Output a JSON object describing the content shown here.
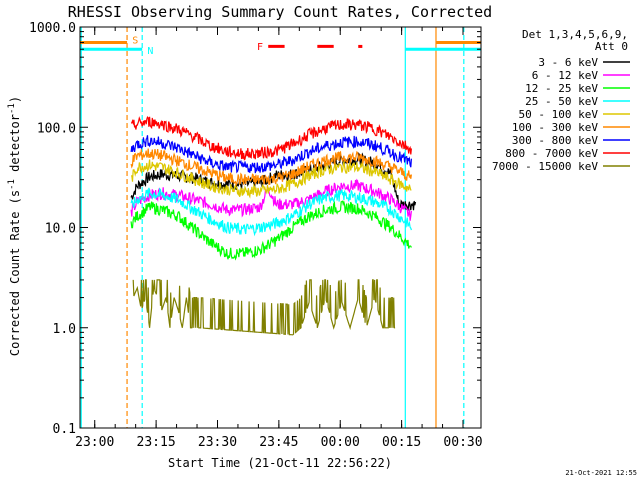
{
  "chart_data": {
    "type": "line",
    "title": "RHESSI Observing Summary Count Rates, Corrected",
    "xlabel": "Start Time (21-Oct-11 22:56:22)",
    "ylabel_main": "Corrected Count Rate (s",
    "ylabel_sup1": "-1",
    "ylabel_mid": " detector",
    "ylabel_sup2": "-1",
    "ylabel_end": ")",
    "x_unit": "minutes after 22:56:22",
    "xlim": [
      0,
      98
    ],
    "ylim": [
      0.1,
      1000
    ],
    "yscale": "log",
    "grid": false,
    "legend_position": "top-right",
    "xticks": [
      {
        "value": 3.6,
        "label": "23:00"
      },
      {
        "value": 18.6,
        "label": "23:15"
      },
      {
        "value": 33.6,
        "label": "23:30"
      },
      {
        "value": 48.6,
        "label": "23:45"
      },
      {
        "value": 63.6,
        "label": "00:00"
      },
      {
        "value": 78.6,
        "label": "00:15"
      },
      {
        "value": 93.6,
        "label": "00:30"
      }
    ],
    "yticks": [
      {
        "value": 0.1,
        "label": "0.1"
      },
      {
        "value": 1,
        "label": "1.0"
      },
      {
        "value": 10,
        "label": "10.0"
      },
      {
        "value": 100,
        "label": "100.0"
      },
      {
        "value": 1000,
        "label": "1000.0"
      }
    ],
    "legend_header": [
      "Det 1,3,4,5,6,9,",
      "Att 0"
    ],
    "series": [
      {
        "name": "3 - 6 keV",
        "color": "#000000",
        "x": [
          12.5,
          14,
          17,
          20,
          24,
          28,
          32,
          36,
          40,
          44,
          48,
          52,
          56,
          60,
          64,
          68,
          72,
          76,
          78,
          80,
          82
        ],
        "y": [
          20,
          26,
          32,
          34,
          33,
          31,
          28,
          27,
          27,
          28,
          33,
          34,
          37,
          42,
          47,
          48,
          44,
          34,
          17,
          17,
          17
        ]
      },
      {
        "name": "6 - 12 keV",
        "color": "#ff00ff",
        "x": [
          12.5,
          14,
          17,
          20,
          24,
          28,
          32,
          36,
          40,
          44,
          46,
          48,
          52,
          56,
          60,
          64,
          68,
          72,
          76,
          80,
          81
        ],
        "y": [
          14,
          18,
          21,
          22,
          21,
          19,
          17,
          15,
          15,
          16,
          25,
          17,
          17,
          19,
          23,
          26,
          26,
          23,
          19,
          14,
          13
        ]
      },
      {
        "name": "12 - 25 keV",
        "color": "#00ff00",
        "x": [
          12.5,
          14,
          17,
          20,
          24,
          28,
          32,
          36,
          40,
          44,
          48,
          52,
          56,
          60,
          64,
          68,
          72,
          76,
          80,
          81
        ],
        "y": [
          11,
          13,
          16,
          15,
          13,
          9.5,
          7,
          5.5,
          5.5,
          6,
          7.5,
          10,
          13,
          15,
          16,
          15.5,
          13,
          10,
          7,
          6.5
        ]
      },
      {
        "name": "25 - 50 keV",
        "color": "#00ffff",
        "x": [
          12.5,
          14,
          17,
          20,
          24,
          28,
          32,
          36,
          40,
          44,
          48,
          52,
          56,
          60,
          64,
          68,
          72,
          76,
          80,
          81
        ],
        "y": [
          16,
          19,
          22,
          21,
          19,
          15,
          12,
          10,
          9.5,
          10,
          11,
          13,
          17,
          20,
          21,
          20,
          18,
          15,
          11,
          10
        ]
      },
      {
        "name": "50 - 100 keV",
        "color": "#ddc700",
        "x": [
          12.5,
          14,
          17,
          20,
          24,
          28,
          32,
          36,
          40,
          44,
          48,
          52,
          56,
          60,
          64,
          68,
          72,
          76,
          80,
          81
        ],
        "y": [
          30,
          40,
          42,
          40,
          35,
          30,
          26,
          24,
          23,
          23,
          24,
          27,
          33,
          38,
          40,
          40,
          36,
          30,
          25,
          23
        ]
      },
      {
        "name": "100 - 300 keV",
        "color": "#ff8800",
        "x": [
          12.5,
          14,
          17,
          20,
          24,
          28,
          32,
          36,
          40,
          44,
          48,
          52,
          56,
          60,
          64,
          68,
          72,
          76,
          80,
          81
        ],
        "y": [
          45,
          52,
          55,
          52,
          46,
          40,
          35,
          31,
          30,
          30,
          31,
          34,
          41,
          47,
          50,
          50,
          46,
          40,
          33,
          31
        ]
      },
      {
        "name": "300 - 800 keV",
        "color": "#0000ff",
        "x": [
          12.5,
          14,
          17,
          20,
          24,
          28,
          32,
          36,
          40,
          44,
          48,
          52,
          56,
          60,
          64,
          68,
          72,
          76,
          80,
          81
        ],
        "y": [
          60,
          68,
          74,
          70,
          62,
          52,
          44,
          40,
          40,
          40,
          42,
          47,
          57,
          65,
          71,
          72,
          66,
          56,
          46,
          43
        ]
      },
      {
        "name": "800 - 7000 keV",
        "color": "#ff0000",
        "x": [
          12.5,
          14,
          17,
          20,
          24,
          28,
          32,
          36,
          40,
          44,
          48,
          52,
          56,
          60,
          64,
          68,
          72,
          76,
          80,
          81
        ],
        "y": [
          100,
          108,
          114,
          108,
          95,
          80,
          65,
          57,
          54,
          55,
          58,
          68,
          84,
          98,
          106,
          106,
          96,
          80,
          64,
          60
        ]
      },
      {
        "name": "7000 - 15000 keV",
        "color": "#808000",
        "x": [
          13,
          14,
          15,
          16,
          17,
          18,
          19,
          20,
          21,
          22,
          23,
          24,
          25,
          26,
          27,
          28,
          29,
          52,
          54,
          56,
          58,
          60,
          62,
          64,
          66,
          68,
          70,
          72,
          74,
          75,
          76,
          77
        ],
        "y": [
          2,
          2.5,
          1.5,
          2,
          1,
          2.5,
          2,
          1.5,
          2,
          1,
          2,
          1.5,
          1,
          2,
          1,
          1,
          1,
          0.85,
          1,
          1.8,
          1,
          2,
          1,
          1.8,
          1,
          2,
          1,
          2,
          1,
          1,
          1,
          1
        ]
      }
    ],
    "vertical_markers": [
      {
        "x": 0.3,
        "color": "#00ffff",
        "style": "solid"
      },
      {
        "x": 11.5,
        "color": "#ff8800",
        "style": "dashed"
      },
      {
        "x": 15.2,
        "color": "#00ffff",
        "style": "dashed"
      },
      {
        "x": 79.5,
        "color": "#00ffff",
        "style": "solid"
      },
      {
        "x": 87,
        "color": "#ff8800",
        "style": "solid"
      },
      {
        "x": 93.8,
        "color": "#00ffff",
        "style": "dashed"
      }
    ],
    "flag_bars": [
      {
        "x0": 0,
        "x1": 11.5,
        "level": 700,
        "color": "#ff8800"
      },
      {
        "x0": 0,
        "x1": 15.2,
        "level": 600,
        "color": "#00ffff"
      },
      {
        "x0": 79.5,
        "x1": 98,
        "level": 600,
        "color": "#00ffff"
      },
      {
        "x0": 87,
        "x1": 98,
        "level": 700,
        "color": "#ff8800"
      }
    ],
    "flag_labels": [
      {
        "x": 13.5,
        "text": "S",
        "color": "#ff8800",
        "level": 750
      },
      {
        "x": 17.2,
        "text": "N",
        "color": "#00ffff",
        "level": 590
      },
      {
        "x": 44.0,
        "text": "F",
        "color": "#ff0000",
        "level": 650
      }
    ],
    "flare_segments": [
      {
        "x0": 46,
        "x1": 50,
        "level": 640,
        "color": "#ff0000"
      },
      {
        "x0": 58,
        "x1": 62,
        "level": 640,
        "color": "#ff0000"
      },
      {
        "x0": 68,
        "x1": 69,
        "level": 640,
        "color": "#ff0000"
      }
    ]
  },
  "timestamp": "21-Oct-2021 12:55"
}
